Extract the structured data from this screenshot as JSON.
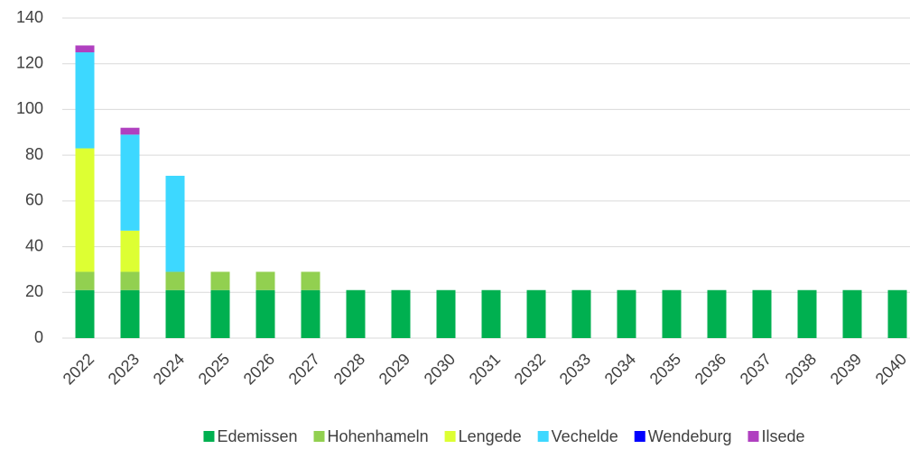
{
  "chart_data": {
    "type": "stacked_bar",
    "categories": [
      "2022",
      "2023",
      "2024",
      "2025",
      "2026",
      "2027",
      "2028",
      "2029",
      "2030",
      "2031",
      "2032",
      "2033",
      "2034",
      "2035",
      "2036",
      "2037",
      "2038",
      "2039",
      "2040"
    ],
    "series": [
      {
        "name": "Edemissen",
        "color": "#00b050",
        "values": [
          21,
          21,
          21,
          21,
          21,
          21,
          21,
          21,
          21,
          21,
          21,
          21,
          21,
          21,
          21,
          21,
          21,
          21,
          21
        ]
      },
      {
        "name": "Hohenhameln",
        "color": "#92d050",
        "values": [
          8,
          8,
          8,
          8,
          8,
          8,
          0,
          0,
          0,
          0,
          0,
          0,
          0,
          0,
          0,
          0,
          0,
          0,
          0
        ]
      },
      {
        "name": "Lengede",
        "color": "#ddff33",
        "values": [
          54,
          18,
          0,
          0,
          0,
          0,
          0,
          0,
          0,
          0,
          0,
          0,
          0,
          0,
          0,
          0,
          0,
          0,
          0
        ]
      },
      {
        "name": "Vechelde",
        "color": "#3dd8ff",
        "values": [
          42,
          42,
          42,
          0,
          0,
          0,
          0,
          0,
          0,
          0,
          0,
          0,
          0,
          0,
          0,
          0,
          0,
          0,
          0
        ]
      },
      {
        "name": "Wendeburg",
        "color": "#0000ff",
        "values": [
          0,
          0,
          0,
          0,
          0,
          0,
          0,
          0,
          0,
          0,
          0,
          0,
          0,
          0,
          0,
          0,
          0,
          0,
          0
        ]
      },
      {
        "name": "Ilsede",
        "color": "#b040c0",
        "values": [
          3,
          3,
          0,
          0,
          0,
          0,
          0,
          0,
          0,
          0,
          0,
          0,
          0,
          0,
          0,
          0,
          0,
          0,
          0
        ]
      }
    ],
    "ylim": [
      0,
      140
    ],
    "yticks": [
      0,
      20,
      40,
      60,
      80,
      100,
      120,
      140
    ],
    "grid": true,
    "legend": "bottom"
  }
}
